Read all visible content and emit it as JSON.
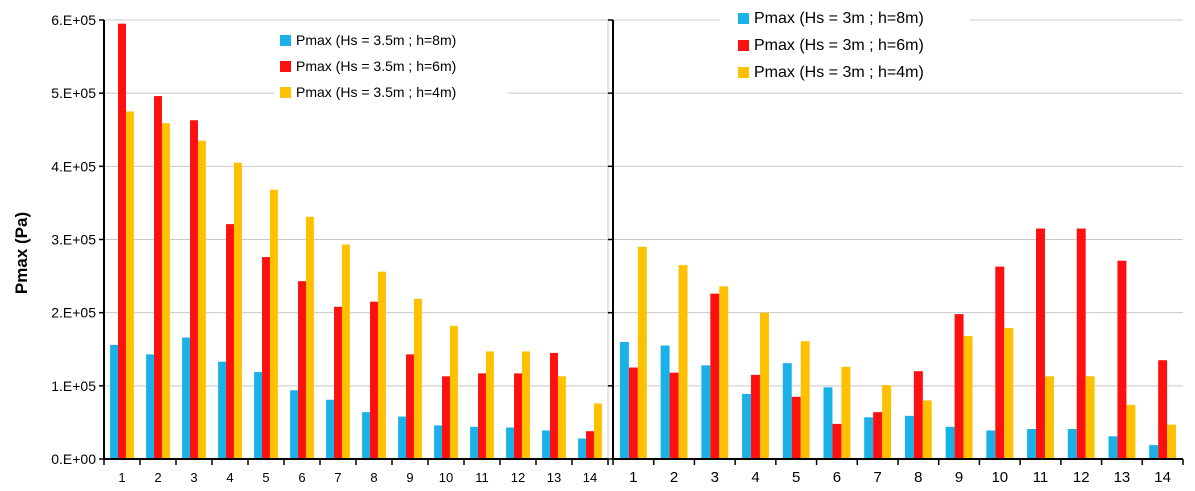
{
  "chart_data": [
    {
      "type": "bar",
      "ylabel": "Pmax (Pa)",
      "xlabel": "",
      "ylim": [
        0,
        600000
      ],
      "yticks": [
        0,
        100000,
        200000,
        300000,
        400000,
        500000,
        600000
      ],
      "ytick_labels": [
        "0.E+00",
        "1.E+05",
        "2.E+05",
        "3.E+05",
        "4.E+05",
        "5.E+05",
        "6.E+05"
      ],
      "categories": [
        "1",
        "2",
        "3",
        "4",
        "5",
        "6",
        "7",
        "8",
        "9",
        "10",
        "11",
        "12",
        "13",
        "14"
      ],
      "grid": true,
      "legend_position": "top-right",
      "series": [
        {
          "name": "Pmax (Hs = 3.5m ; h=8m)",
          "color": "#1ab0e8",
          "values": [
            156000,
            143000,
            166000,
            133000,
            119000,
            94000,
            81000,
            64000,
            58000,
            46000,
            44000,
            43000,
            39000,
            28000
          ]
        },
        {
          "name": "Pmax (Hs = 3.5m ; h=6m)",
          "color": "#ff1010",
          "values": [
            595000,
            496000,
            463000,
            321000,
            276000,
            243000,
            208000,
            215000,
            143000,
            113000,
            117000,
            117000,
            145000,
            38000
          ]
        },
        {
          "name": "Pmax (Hs = 3.5m ; h=4m)",
          "color": "#ffc000",
          "values": [
            475000,
            459000,
            435000,
            405000,
            368000,
            331000,
            293000,
            256000,
            219000,
            182000,
            147000,
            147000,
            113000,
            76000
          ]
        }
      ]
    },
    {
      "type": "bar",
      "ylim": [
        0,
        600000
      ],
      "yticks": [
        0,
        100000,
        200000,
        300000,
        400000,
        500000,
        600000
      ],
      "categories": [
        "1",
        "2",
        "3",
        "4",
        "5",
        "6",
        "7",
        "8",
        "9",
        "10",
        "11",
        "12",
        "13",
        "14"
      ],
      "grid": true,
      "legend_position": "top-left",
      "series": [
        {
          "name": "Pmax (Hs = 3m ; h=8m)",
          "color": "#1ab0e8",
          "values": [
            160000,
            155000,
            128000,
            89000,
            131000,
            98000,
            57000,
            59000,
            44000,
            39000,
            41000,
            41000,
            31000,
            19000
          ]
        },
        {
          "name": "Pmax (Hs = 3m ; h=6m)",
          "color": "#ff1010",
          "values": [
            125000,
            118000,
            226000,
            115000,
            85000,
            48000,
            64000,
            120000,
            198000,
            263000,
            315000,
            315000,
            271000,
            135000
          ]
        },
        {
          "name": "Pmax (Hs = 3m ; h=4m)",
          "color": "#ffc000",
          "values": [
            290000,
            265000,
            236000,
            200000,
            161000,
            126000,
            101000,
            80000,
            168000,
            179000,
            113000,
            113000,
            74000,
            47000
          ]
        }
      ]
    }
  ]
}
